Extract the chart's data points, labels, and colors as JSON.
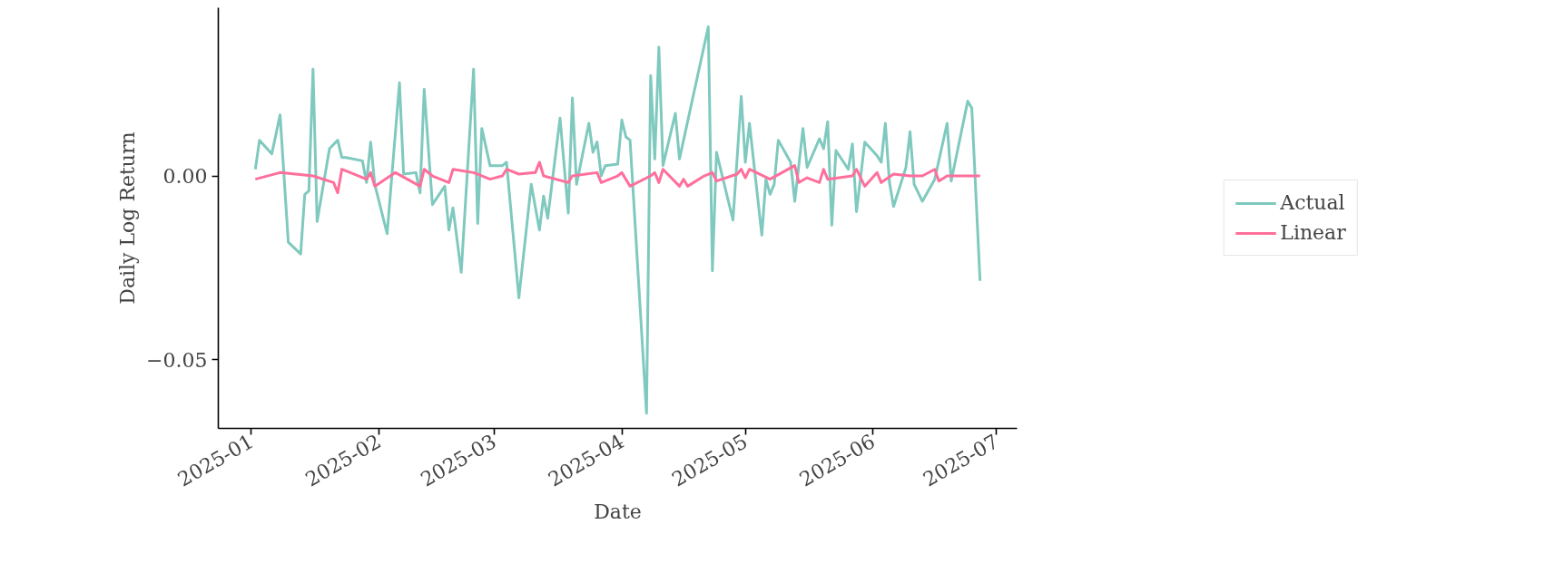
{
  "chart_data": {
    "type": "line",
    "xlabel": "Date",
    "ylabel": "Daily Log Return",
    "xlim": [
      "2024-12-24",
      "2025-07-06"
    ],
    "ylim": [
      -0.0686,
      0.0457
    ],
    "xticks": [
      "2025-01",
      "2025-02",
      "2025-03",
      "2025-04",
      "2025-05",
      "2025-06",
      "2025-07"
    ],
    "yticks": [
      {
        "value": -0.05,
        "label": "−0.05"
      },
      {
        "value": 0,
        "label": "0.00"
      }
    ],
    "grid": false,
    "legend": "right",
    "marker": "none",
    "line_style": "solid",
    "series": [
      {
        "name": "Actual",
        "color": "#7fc9be",
        "x": [
          "2025-01-02",
          "2025-01-03",
          "2025-01-06",
          "2025-01-08",
          "2025-01-10",
          "2025-01-13",
          "2025-01-14",
          "2025-01-15",
          "2025-01-16",
          "2025-01-17",
          "2025-01-20",
          "2025-01-22",
          "2025-01-23",
          "2025-01-24",
          "2025-01-28",
          "2025-01-29",
          "2025-01-30",
          "2025-01-31",
          "2025-02-03",
          "2025-02-06",
          "2025-02-07",
          "2025-02-10",
          "2025-02-11",
          "2025-02-12",
          "2025-02-14",
          "2025-02-17",
          "2025-02-18",
          "2025-02-19",
          "2025-02-21",
          "2025-02-24",
          "2025-02-25",
          "2025-02-26",
          "2025-02-28",
          "2025-03-03",
          "2025-03-04",
          "2025-03-07",
          "2025-03-10",
          "2025-03-12",
          "2025-03-13",
          "2025-03-14",
          "2025-03-17",
          "2025-03-19",
          "2025-03-20",
          "2025-03-21",
          "2025-03-24",
          "2025-03-25",
          "2025-03-26",
          "2025-03-27",
          "2025-03-28",
          "2025-03-31",
          "2025-04-01",
          "2025-04-02",
          "2025-04-03",
          "2025-04-07",
          "2025-04-08",
          "2025-04-09",
          "2025-04-10",
          "2025-04-11",
          "2025-04-14",
          "2025-04-15",
          "2025-04-22",
          "2025-04-23",
          "2025-04-24",
          "2025-04-28",
          "2025-04-30",
          "2025-05-01",
          "2025-05-02",
          "2025-05-05",
          "2025-05-06",
          "2025-05-07",
          "2025-05-08",
          "2025-05-09",
          "2025-05-12",
          "2025-05-13",
          "2025-05-15",
          "2025-05-16",
          "2025-05-19",
          "2025-05-20",
          "2025-05-21",
          "2025-05-22",
          "2025-05-23",
          "2025-05-26",
          "2025-05-27",
          "2025-05-28",
          "2025-05-30",
          "2025-06-02",
          "2025-06-03",
          "2025-06-04",
          "2025-06-05",
          "2025-06-06",
          "2025-06-09",
          "2025-06-10",
          "2025-06-11",
          "2025-06-13",
          "2025-06-16",
          "2025-06-19",
          "2025-06-20",
          "2025-06-24",
          "2025-06-25",
          "2025-06-27"
        ],
        "values": [
          0.0018,
          0.0097,
          0.006,
          0.0166,
          -0.018,
          -0.0212,
          -0.005,
          -0.0041,
          0.029,
          -0.0124,
          0.0074,
          0.0097,
          0.005,
          0.005,
          0.0041,
          -0.0018,
          0.0092,
          -0.0023,
          -0.0157,
          0.0253,
          0.0005,
          0.0009,
          -0.0046,
          0.0235,
          -0.0078,
          -0.0028,
          -0.0147,
          -0.0087,
          -0.0262,
          0.029,
          -0.0129,
          0.0129,
          0.0028,
          0.0028,
          0.0037,
          -0.0331,
          -0.0023,
          -0.0147,
          -0.0055,
          -0.0115,
          0.0157,
          -0.0101,
          0.0212,
          -0.0023,
          0.0143,
          0.0064,
          0.0092,
          0.0,
          0.0028,
          0.0032,
          0.0152,
          0.0106,
          0.0097,
          -0.0645,
          0.0272,
          0.0046,
          0.035,
          0.0028,
          0.017,
          0.0046,
          0.0405,
          -0.0258,
          0.0064,
          -0.012,
          0.0216,
          0.0037,
          0.0143,
          -0.0161,
          -0.0009,
          -0.005,
          -0.0023,
          0.0097,
          0.0037,
          -0.0069,
          0.0129,
          0.0023,
          0.0101,
          0.0074,
          0.0147,
          -0.0134,
          0.0069,
          0.0018,
          0.0087,
          -0.0097,
          0.0092,
          0.0055,
          0.0037,
          0.0143,
          -0.0018,
          -0.0083,
          0.0023,
          0.012,
          -0.0023,
          -0.0069,
          -0.0009,
          0.0143,
          -0.0014,
          0.0203,
          0.0184,
          -0.0285
        ]
      },
      {
        "name": "Linear",
        "color": "#ff6f9c",
        "x": [
          "2025-01-02",
          "2025-01-08",
          "2025-01-16",
          "2025-01-21",
          "2025-01-22",
          "2025-01-23",
          "2025-01-29",
          "2025-01-30",
          "2025-01-31",
          "2025-02-05",
          "2025-02-11",
          "2025-02-12",
          "2025-02-14",
          "2025-02-18",
          "2025-02-19",
          "2025-02-24",
          "2025-02-28",
          "2025-03-03",
          "2025-03-04",
          "2025-03-07",
          "2025-03-11",
          "2025-03-12",
          "2025-03-13",
          "2025-03-19",
          "2025-03-20",
          "2025-03-26",
          "2025-03-27",
          "2025-03-31",
          "2025-04-01",
          "2025-04-03",
          "2025-04-08",
          "2025-04-09",
          "2025-04-10",
          "2025-04-11",
          "2025-04-15",
          "2025-04-16",
          "2025-04-17",
          "2025-04-21",
          "2025-04-23",
          "2025-04-24",
          "2025-04-29",
          "2025-04-30",
          "2025-05-01",
          "2025-05-02",
          "2025-05-07",
          "2025-05-13",
          "2025-05-14",
          "2025-05-16",
          "2025-05-19",
          "2025-05-20",
          "2025-05-21",
          "2025-05-27",
          "2025-05-28",
          "2025-05-30",
          "2025-06-02",
          "2025-06-03",
          "2025-06-06",
          "2025-06-10",
          "2025-06-13",
          "2025-06-16",
          "2025-06-17",
          "2025-06-19",
          "2025-06-27"
        ],
        "values": [
          -0.0009,
          0.0009,
          0.0,
          -0.0018,
          -0.0046,
          0.0018,
          -0.0009,
          0.0009,
          -0.0028,
          0.0009,
          -0.0028,
          0.0018,
          0.0,
          -0.0018,
          0.0018,
          0.0009,
          -0.0009,
          0.0,
          0.0018,
          0.0005,
          0.0009,
          0.0037,
          0.0,
          -0.0018,
          0.0,
          0.0009,
          -0.0018,
          0.0,
          0.0009,
          -0.0028,
          0.0,
          0.0009,
          -0.0018,
          0.0018,
          -0.0028,
          -0.0009,
          -0.0028,
          0.0,
          0.0009,
          -0.0014,
          0.0005,
          0.0018,
          -0.0005,
          0.0018,
          -0.0009,
          0.0028,
          -0.0018,
          -0.0005,
          -0.0018,
          0.0018,
          -0.0009,
          0.0,
          0.0018,
          -0.0028,
          0.0009,
          -0.0018,
          0.0005,
          0.0,
          0.0,
          0.0018,
          -0.0014,
          0.0,
          0.0
        ]
      }
    ]
  }
}
